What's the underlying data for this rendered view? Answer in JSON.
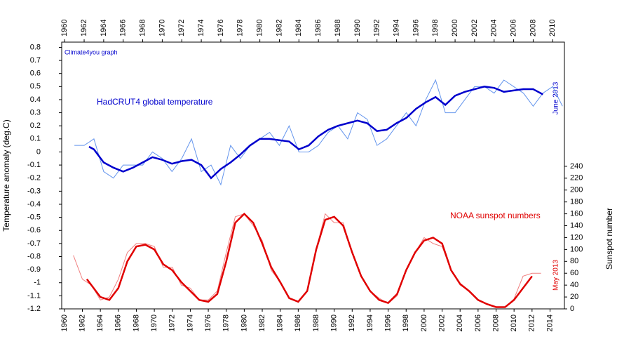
{
  "chart_data": {
    "type": "line",
    "ylabel": "Temperature anomaly (deg.C)",
    "y2label": "Sunspot number",
    "annotations": [
      "Climate4you graph",
      "HadCRUT4 global temperature",
      "June 2013",
      "NOAA sunspot numbers",
      "May 2013"
    ],
    "xlim": [
      1959.7,
      2015.6
    ],
    "xticks": [
      1960,
      1962,
      1964,
      1966,
      1968,
      1970,
      1972,
      1974,
      1976,
      1978,
      1980,
      1982,
      1984,
      1986,
      1988,
      1990,
      1992,
      1994,
      1996,
      1998,
      2000,
      2002,
      2004,
      2006,
      2008,
      2010,
      2012,
      2014
    ],
    "x2lim": [
      1959.7,
      2011.2
    ],
    "x2ticks": [
      1960,
      1962,
      1964,
      1966,
      1968,
      1970,
      1972,
      1974,
      1976,
      1978,
      1980,
      1982,
      1984,
      1986,
      1988,
      1990,
      1992,
      1994,
      1996,
      1998,
      2000,
      2002,
      2004,
      2006,
      2008,
      2010
    ],
    "ylim": [
      -1.2,
      0.84
    ],
    "yticks": [
      0.8,
      0.7,
      0.6,
      0.5,
      0.4,
      0.3,
      0.2,
      0.1,
      0,
      -0.1,
      -0.2,
      -0.3,
      -0.4,
      -0.5,
      -0.6,
      -0.7,
      -0.8,
      -0.9,
      -1,
      -1.1,
      -1.2
    ],
    "y2lim": [
      0,
      449
    ],
    "y2ticks": [
      0,
      20,
      40,
      60,
      80,
      100,
      120,
      140,
      160,
      180,
      200,
      220,
      240
    ],
    "series": [
      {
        "name": "HadCRUT4 global temperature",
        "color": "#6495ed",
        "width": 1,
        "xaxis": "x2",
        "x": [
          1961,
          1962,
          1963,
          1964,
          1965,
          1966,
          1967,
          1968,
          1969,
          1970,
          1971,
          1972,
          1973,
          1974,
          1975,
          1976,
          1977,
          1978,
          1979,
          1980,
          1981,
          1982,
          1983,
          1984,
          1985,
          1986,
          1987,
          1988,
          1989,
          1990,
          1991,
          1992,
          1993,
          1994,
          1995,
          1996,
          1997,
          1998,
          1999,
          2000,
          2001,
          2002,
          2003,
          2004,
          2005,
          2006,
          2007,
          2008,
          2009,
          2010,
          2011
        ],
        "values": [
          0.05,
          0.05,
          0.1,
          -0.15,
          -0.2,
          -0.1,
          -0.1,
          -0.1,
          0.0,
          -0.05,
          -0.15,
          -0.05,
          0.1,
          -0.15,
          -0.1,
          -0.25,
          0.05,
          -0.05,
          0.05,
          0.1,
          0.15,
          0.05,
          0.2,
          0.0,
          0.0,
          0.05,
          0.15,
          0.2,
          0.1,
          0.3,
          0.25,
          0.05,
          0.1,
          0.2,
          0.3,
          0.2,
          0.4,
          0.55,
          0.3,
          0.3,
          0.4,
          0.5,
          0.5,
          0.45,
          0.55,
          0.5,
          0.45,
          0.35,
          0.45,
          0.5,
          0.35
        ]
      },
      {
        "color": "#0000cd",
        "width": 2.5,
        "xaxis": "x2",
        "x": [
          1962.5,
          1963,
          1964,
          1965,
          1966,
          1967,
          1968,
          1969,
          1970,
          1971,
          1972,
          1973,
          1974,
          1975,
          1976,
          1977,
          1978,
          1979,
          1980,
          1981,
          1982,
          1983,
          1984,
          1985,
          1986,
          1987,
          1988,
          1989,
          1990,
          1991,
          1992,
          1993,
          1994,
          1995,
          1996,
          1997,
          1998,
          1999,
          2000,
          2001,
          2002,
          2003,
          2004,
          2005,
          2006,
          2007,
          2008,
          2009
        ],
        "values": [
          0.04,
          0.02,
          -0.08,
          -0.12,
          -0.15,
          -0.12,
          -0.08,
          -0.04,
          -0.06,
          -0.09,
          -0.07,
          -0.06,
          -0.1,
          -0.2,
          -0.13,
          -0.08,
          -0.02,
          0.05,
          0.1,
          0.1,
          0.09,
          0.08,
          0.02,
          0.05,
          0.12,
          0.17,
          0.2,
          0.22,
          0.24,
          0.22,
          0.16,
          0.17,
          0.22,
          0.26,
          0.33,
          0.38,
          0.42,
          0.36,
          0.43,
          0.46,
          0.48,
          0.5,
          0.49,
          0.46,
          0.47,
          0.48,
          0.48,
          0.44
        ]
      },
      {
        "name": "NOAA sunspot numbers",
        "color": "#f08080",
        "width": 1,
        "axis": "y2",
        "x": [
          1961,
          1962,
          1963,
          1964,
          1965,
          1966,
          1967,
          1968,
          1969,
          1970,
          1971,
          1972,
          1973,
          1974,
          1975,
          1976,
          1977,
          1978,
          1979,
          1980,
          1981,
          1982,
          1983,
          1984,
          1985,
          1986,
          1987,
          1988,
          1989,
          1990,
          1991,
          1992,
          1993,
          1994,
          1995,
          1996,
          1997,
          1998,
          1999,
          2000,
          2001,
          2002,
          2003,
          2004,
          2005,
          2006,
          2007,
          2008,
          2009,
          2010,
          2011,
          2012,
          2013
        ],
        "values": [
          90,
          50,
          40,
          15,
          20,
          50,
          95,
          110,
          110,
          105,
          70,
          70,
          40,
          35,
          15,
          15,
          30,
          95,
          155,
          160,
          140,
          115,
          65,
          45,
          18,
          12,
          30,
          100,
          160,
          145,
          145,
          95,
          55,
          30,
          18,
          9,
          22,
          65,
          95,
          120,
          110,
          105,
          65,
          40,
          30,
          15,
          8,
          3,
          3,
          17,
          55,
          60,
          60
        ]
      },
      {
        "color": "#e00000",
        "width": 2.5,
        "axis": "y2",
        "x": [
          1962.5,
          1963,
          1964,
          1965,
          1966,
          1967,
          1968,
          1969,
          1970,
          1971,
          1972,
          1973,
          1974,
          1975,
          1976,
          1977,
          1978,
          1979,
          1980,
          1981,
          1982,
          1983,
          1984,
          1985,
          1986,
          1987,
          1988,
          1989,
          1990,
          1991,
          1992,
          1993,
          1994,
          1995,
          1996,
          1997,
          1998,
          1999,
          2000,
          2001,
          2002,
          2003,
          2004,
          2005,
          2006,
          2007,
          2008,
          2009,
          2010,
          2011,
          2012
        ],
        "values": [
          50,
          40,
          20,
          15,
          35,
          80,
          105,
          108,
          100,
          75,
          65,
          45,
          30,
          15,
          12,
          25,
          80,
          145,
          160,
          145,
          110,
          70,
          45,
          18,
          12,
          30,
          100,
          150,
          155,
          140,
          95,
          55,
          30,
          15,
          10,
          25,
          65,
          95,
          115,
          120,
          110,
          65,
          42,
          30,
          15,
          8,
          3,
          3,
          15,
          35,
          55
        ]
      }
    ]
  }
}
